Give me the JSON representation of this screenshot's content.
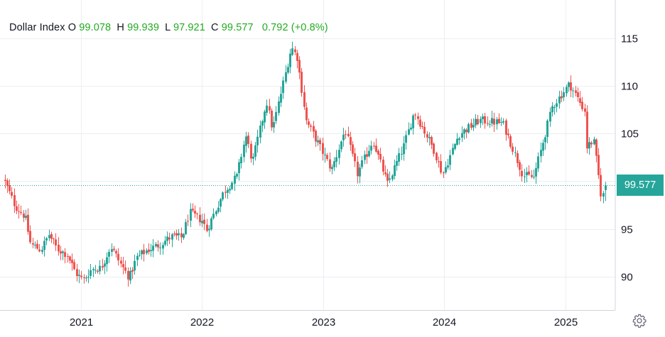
{
  "legend": {
    "name": "Dollar Index",
    "open_key": "O",
    "open": "99.078",
    "high_key": "H",
    "high": "99.939",
    "low_key": "L",
    "low": "97.921",
    "close_key": "C",
    "close": "99.577",
    "change": "0.792",
    "change_pct": "(+0.8%)"
  },
  "last_price_label": "99.577",
  "icons": {
    "settings": "gear-icon"
  },
  "colors": {
    "up": "#26a69a",
    "down": "#ef5350",
    "price_line": "#26a69a",
    "legend_values": "#22ab22"
  },
  "chart_data": {
    "type": "candlestick",
    "title": "Dollar Index",
    "xlabel": "",
    "ylabel": "",
    "x_ticks": [
      "2021",
      "2022",
      "2023",
      "2024",
      "2025"
    ],
    "y_ticks": [
      90,
      95,
      100,
      105,
      110,
      115
    ],
    "y_tick_labels": [
      "90",
      "95",
      "",
      "105",
      "110",
      "115"
    ],
    "ylim": [
      86.5,
      119
    ],
    "xlim": [
      "2020-05",
      "2025-06"
    ],
    "grid": true,
    "last_close": 99.577,
    "series_close_approx": [
      [
        "2020-05-15",
        99.9
      ],
      [
        "2020-06-15",
        97.4
      ],
      [
        "2020-07-15",
        96.3
      ],
      [
        "2020-08-01",
        93.4
      ],
      [
        "2020-09-01",
        92.8
      ],
      [
        "2020-09-25",
        94.4
      ],
      [
        "2020-10-20",
        92.9
      ],
      [
        "2020-11-20",
        92.3
      ],
      [
        "2020-12-15",
        90.4
      ],
      [
        "2021-01-06",
        89.6
      ],
      [
        "2021-02-01",
        90.8
      ],
      [
        "2021-03-01",
        90.9
      ],
      [
        "2021-03-31",
        93.2
      ],
      [
        "2021-04-30",
        91.3
      ],
      [
        "2021-05-25",
        89.9
      ],
      [
        "2021-06-17",
        92.0
      ],
      [
        "2021-07-15",
        92.7
      ],
      [
        "2021-08-20",
        93.3
      ],
      [
        "2021-09-30",
        94.2
      ],
      [
        "2021-10-31",
        94.1
      ],
      [
        "2021-11-24",
        96.7
      ],
      [
        "2021-12-31",
        95.9
      ],
      [
        "2022-01-14",
        94.9
      ],
      [
        "2022-03-07",
        98.9
      ],
      [
        "2022-04-15",
        100.5
      ],
      [
        "2022-05-12",
        104.8
      ],
      [
        "2022-06-01",
        102.0
      ],
      [
        "2022-07-14",
        108.4
      ],
      [
        "2022-08-01",
        105.4
      ],
      [
        "2022-09-27",
        114.1
      ],
      [
        "2022-10-14",
        113.0
      ],
      [
        "2022-11-11",
        106.3
      ],
      [
        "2022-12-15",
        104.1
      ],
      [
        "2023-01-26",
        101.2
      ],
      [
        "2023-03-08",
        105.4
      ],
      [
        "2023-04-14",
        100.8
      ],
      [
        "2023-05-31",
        104.3
      ],
      [
        "2023-07-14",
        99.7
      ],
      [
        "2023-08-31",
        103.6
      ],
      [
        "2023-10-03",
        107.3
      ],
      [
        "2023-11-30",
        103.4
      ],
      [
        "2023-12-27",
        100.7
      ],
      [
        "2024-02-14",
        104.9
      ],
      [
        "2024-04-16",
        106.4
      ],
      [
        "2024-06-26",
        106.1
      ],
      [
        "2024-08-27",
        100.6
      ],
      [
        "2024-09-27",
        100.4
      ],
      [
        "2024-11-22",
        107.8
      ],
      [
        "2025-01-13",
        110.2
      ],
      [
        "2025-02-28",
        107.4
      ],
      [
        "2025-03-07",
        103.6
      ],
      [
        "2025-03-27",
        104.3
      ],
      [
        "2025-04-21",
        98.0
      ],
      [
        "2025-05-02",
        99.577
      ]
    ]
  }
}
